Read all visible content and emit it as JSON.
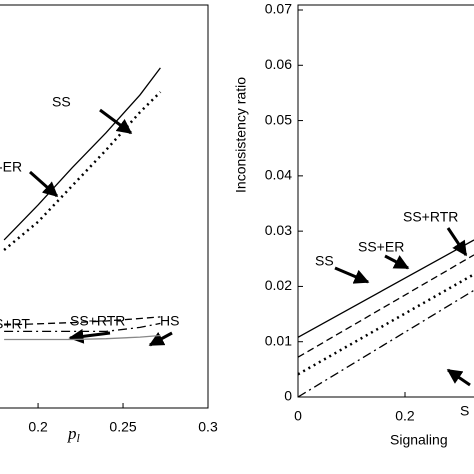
{
  "chart_data": [
    {
      "type": "line",
      "xlabel": [
        "p",
        "l"
      ],
      "xlim": [
        0.1776,
        0.3
      ],
      "ylim": [
        0,
        1
      ],
      "xticks": [
        0.2,
        0.25,
        0.3
      ],
      "annotations": [
        "SS",
        "-ER",
        "S+RT",
        "SS+RTR",
        "HS"
      ],
      "series": [
        {
          "color": "#000",
          "style": "solid",
          "x": [
            0.18,
            0.2,
            0.22,
            0.24,
            0.26,
            0.272
          ],
          "values": [
            0.417,
            0.504,
            0.596,
            0.683,
            0.777,
            0.844
          ]
        },
        {
          "color": "#000",
          "style": "dotted",
          "x": [
            0.18,
            0.2,
            0.22,
            0.24,
            0.26,
            0.272
          ],
          "values": [
            0.392,
            0.462,
            0.551,
            0.64,
            0.734,
            0.784
          ]
        },
        {
          "color": "#000",
          "style": "dashed",
          "x": [
            0.18,
            0.2,
            0.22,
            0.24,
            0.26,
            0.272
          ],
          "values": [
            0.206,
            0.209,
            0.212,
            0.216,
            0.222,
            0.226
          ]
        },
        {
          "color": "#000",
          "style": "dashdot",
          "x": [
            0.18,
            0.2,
            0.22,
            0.24,
            0.26,
            0.272
          ],
          "values": [
            0.19,
            0.19,
            0.19,
            0.19,
            0.2,
            0.21
          ]
        },
        {
          "color": "#888",
          "style": "solid",
          "x": [
            0.18,
            0.2,
            0.22,
            0.24,
            0.26,
            0.272
          ],
          "values": [
            0.17,
            0.17,
            0.17,
            0.172,
            0.176,
            0.18
          ]
        }
      ]
    },
    {
      "type": "line",
      "xlabel": "Signaling",
      "ylabel": "Inconsistency ratio",
      "xlim": [
        0,
        0.329
      ],
      "ylim": [
        0,
        0.07
      ],
      "xticks": [
        0,
        0.2
      ],
      "yticks": [
        0,
        0.01,
        0.02,
        0.03,
        0.04,
        0.05,
        0.06,
        0.07
      ],
      "annotations": [
        "SS",
        "SS+ER",
        "SS+RTR",
        "S"
      ],
      "series": [
        {
          "color": "#000",
          "style": "solid",
          "x": [
            0,
            0.329
          ],
          "values": [
            0.0108,
            0.0284
          ]
        },
        {
          "color": "#000",
          "style": "dashed",
          "x": [
            0,
            0.329
          ],
          "values": [
            0.0072,
            0.0257
          ]
        },
        {
          "color": "#000",
          "style": "dotted",
          "x": [
            0,
            0.329
          ],
          "values": [
            0.0041,
            0.0222
          ]
        },
        {
          "color": "#000",
          "style": "dashdot",
          "x": [
            0,
            0.329
          ],
          "values": [
            0,
            0.0193
          ]
        }
      ]
    }
  ]
}
